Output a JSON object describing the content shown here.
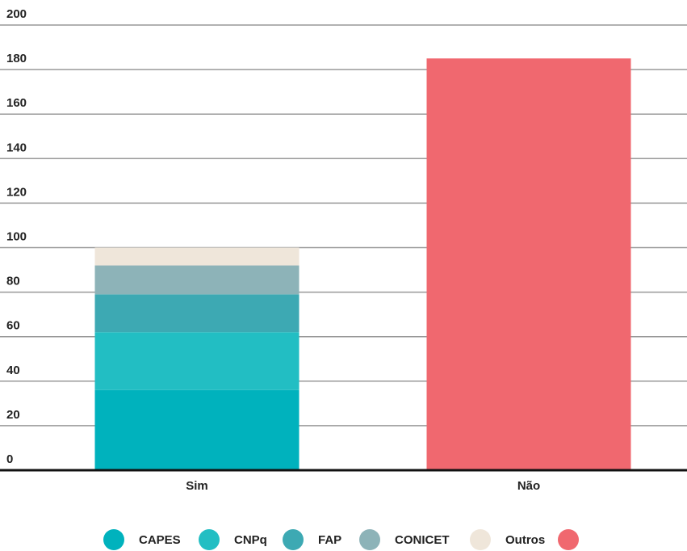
{
  "chart_data": {
    "type": "bar",
    "stacked": true,
    "categories": [
      "Sim",
      "Não"
    ],
    "series": [
      {
        "name": "CAPES",
        "color": "#00b2bd",
        "values": [
          36,
          null
        ]
      },
      {
        "name": "CNPq",
        "color": "#22bec3",
        "values": [
          26,
          null
        ]
      },
      {
        "name": "FAP",
        "color": "#3da9b3",
        "values": [
          17,
          null
        ]
      },
      {
        "name": "CONICET",
        "color": "#8db3b8",
        "values": [
          13,
          null
        ]
      },
      {
        "name": "Outros",
        "color": "#efe6da",
        "values": [
          8,
          null
        ]
      },
      {
        "name": null,
        "color": "#f0686f",
        "values": [
          null,
          185
        ]
      }
    ],
    "ylim": [
      0,
      200
    ],
    "yticks": [
      0,
      20,
      40,
      60,
      80,
      100,
      120,
      140,
      160,
      180,
      200
    ],
    "grid": true,
    "legend": "bottom"
  }
}
